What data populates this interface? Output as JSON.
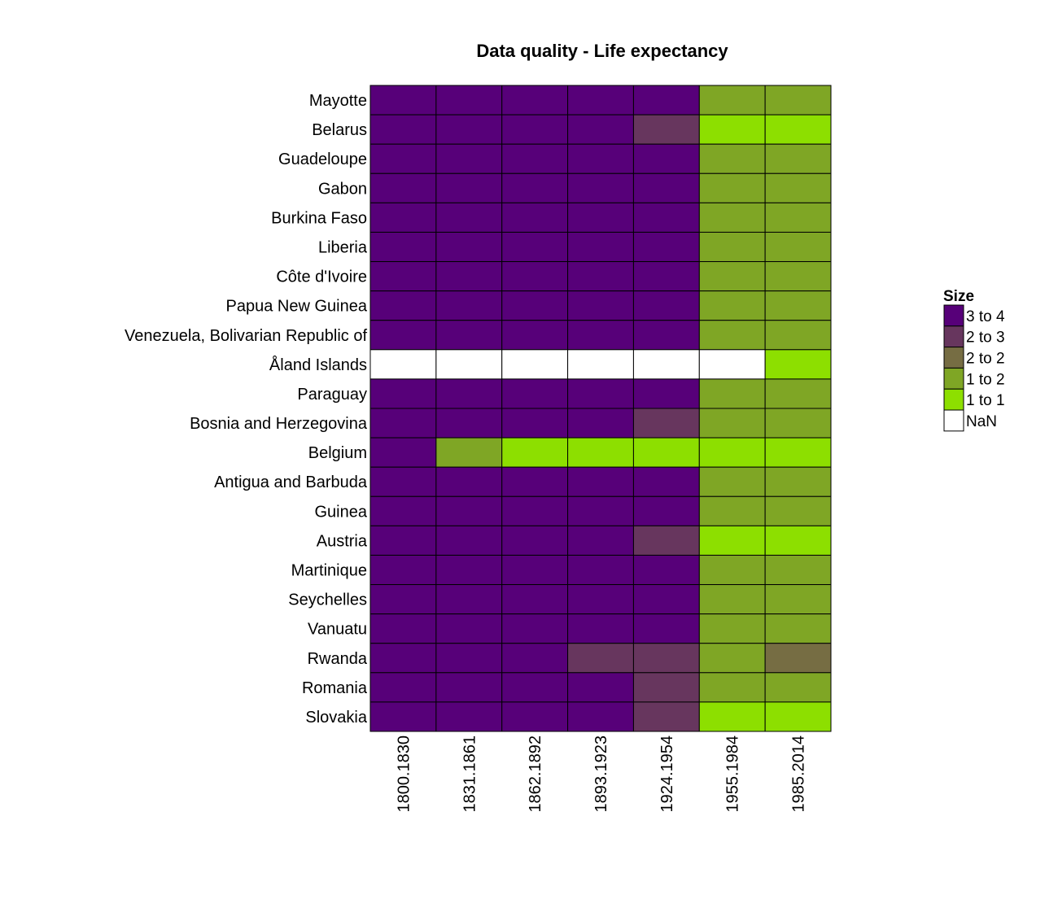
{
  "chart_data": {
    "type": "heatmap",
    "title": "Data quality - Life expectancy",
    "xlabel": "",
    "ylabel": "",
    "columns": [
      "1800.1830",
      "1831.1861",
      "1862.1892",
      "1893.1923",
      "1924.1954",
      "1955.1984",
      "1985.2014"
    ],
    "rows": [
      "Mayotte",
      "Belarus",
      "Guadeloupe",
      "Gabon",
      "Burkina Faso",
      "Liberia",
      "Côte d'Ivoire",
      "Papua New Guinea",
      "Venezuela, Bolivarian Republic of",
      "Åland Islands",
      "Paraguay",
      "Bosnia and Herzegovina",
      "Belgium",
      "Antigua and Barbuda",
      "Guinea",
      "Austria",
      "Martinique",
      "Seychelles",
      "Vanuatu",
      "Rwanda",
      "Romania",
      "Slovakia"
    ],
    "values": [
      [
        "3 to 4",
        "3 to 4",
        "3 to 4",
        "3 to 4",
        "3 to 4",
        "1 to 2",
        "1 to 2"
      ],
      [
        "3 to 4",
        "3 to 4",
        "3 to 4",
        "3 to 4",
        "2 to 3",
        "1 to 1",
        "1 to 1"
      ],
      [
        "3 to 4",
        "3 to 4",
        "3 to 4",
        "3 to 4",
        "3 to 4",
        "1 to 2",
        "1 to 2"
      ],
      [
        "3 to 4",
        "3 to 4",
        "3 to 4",
        "3 to 4",
        "3 to 4",
        "1 to 2",
        "1 to 2"
      ],
      [
        "3 to 4",
        "3 to 4",
        "3 to 4",
        "3 to 4",
        "3 to 4",
        "1 to 2",
        "1 to 2"
      ],
      [
        "3 to 4",
        "3 to 4",
        "3 to 4",
        "3 to 4",
        "3 to 4",
        "1 to 2",
        "1 to 2"
      ],
      [
        "3 to 4",
        "3 to 4",
        "3 to 4",
        "3 to 4",
        "3 to 4",
        "1 to 2",
        "1 to 2"
      ],
      [
        "3 to 4",
        "3 to 4",
        "3 to 4",
        "3 to 4",
        "3 to 4",
        "1 to 2",
        "1 to 2"
      ],
      [
        "3 to 4",
        "3 to 4",
        "3 to 4",
        "3 to 4",
        "3 to 4",
        "1 to 2",
        "1 to 2"
      ],
      [
        "NaN",
        "NaN",
        "NaN",
        "NaN",
        "NaN",
        "NaN",
        "1 to 1"
      ],
      [
        "3 to 4",
        "3 to 4",
        "3 to 4",
        "3 to 4",
        "3 to 4",
        "1 to 2",
        "1 to 2"
      ],
      [
        "3 to 4",
        "3 to 4",
        "3 to 4",
        "3 to 4",
        "2 to 3",
        "1 to 2",
        "1 to 2"
      ],
      [
        "3 to 4",
        "1 to 2",
        "1 to 1",
        "1 to 1",
        "1 to 1",
        "1 to 1",
        "1 to 1"
      ],
      [
        "3 to 4",
        "3 to 4",
        "3 to 4",
        "3 to 4",
        "3 to 4",
        "1 to 2",
        "1 to 2"
      ],
      [
        "3 to 4",
        "3 to 4",
        "3 to 4",
        "3 to 4",
        "3 to 4",
        "1 to 2",
        "1 to 2"
      ],
      [
        "3 to 4",
        "3 to 4",
        "3 to 4",
        "3 to 4",
        "2 to 3",
        "1 to 1",
        "1 to 1"
      ],
      [
        "3 to 4",
        "3 to 4",
        "3 to 4",
        "3 to 4",
        "3 to 4",
        "1 to 2",
        "1 to 2"
      ],
      [
        "3 to 4",
        "3 to 4",
        "3 to 4",
        "3 to 4",
        "3 to 4",
        "1 to 2",
        "1 to 2"
      ],
      [
        "3 to 4",
        "3 to 4",
        "3 to 4",
        "3 to 4",
        "3 to 4",
        "1 to 2",
        "1 to 2"
      ],
      [
        "3 to 4",
        "3 to 4",
        "3 to 4",
        "2 to 3",
        "2 to 3",
        "1 to 2",
        "2 to 2"
      ],
      [
        "3 to 4",
        "3 to 4",
        "3 to 4",
        "3 to 4",
        "2 to 3",
        "1 to 2",
        "1 to 2"
      ],
      [
        "3 to 4",
        "3 to 4",
        "3 to 4",
        "3 to 4",
        "2 to 3",
        "1 to 1",
        "1 to 1"
      ]
    ],
    "legend": {
      "title": "Size",
      "position": "right",
      "entries": [
        {
          "label": "3 to 4",
          "color": "#570079"
        },
        {
          "label": "2 to 3",
          "color": "#67365e"
        },
        {
          "label": "2 to 2",
          "color": "#766d43"
        },
        {
          "label": "1 to 2",
          "color": "#7fa625"
        },
        {
          "label": "1 to 1",
          "color": "#8ddf00"
        },
        {
          "label": "NaN",
          "color": "#ffffff"
        }
      ]
    },
    "grid": false,
    "cell_border_color": "#000000"
  }
}
